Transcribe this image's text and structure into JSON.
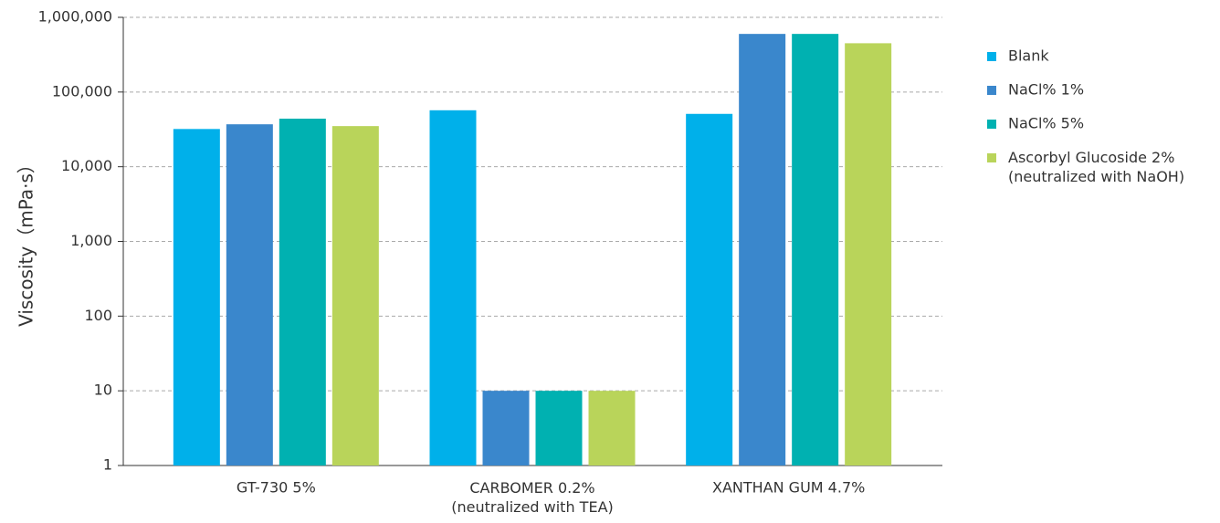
{
  "chart_data": {
    "type": "bar",
    "y_label": "Viscosity（mPa·s）",
    "categories": [
      "GT-730 5%",
      "CARBOMER 0.2%\n(neutralized with TEA)",
      "XANTHAN GUM 4.7%"
    ],
    "series": [
      {
        "name": "Blank",
        "color": "#00b0ea",
        "values": [
          32000,
          57000,
          51000
        ]
      },
      {
        "name": "NaCl% 1%",
        "color": "#3a87cc",
        "values": [
          37000,
          10,
          600000
        ]
      },
      {
        "name": "NaCl% 5%",
        "color": "#00b1b1",
        "values": [
          44000,
          10,
          600000
        ]
      },
      {
        "name": "Ascorbyl Glucoside 2%\n(neutralized with NaOH)",
        "color": "#b9d45a",
        "values": [
          35000,
          10,
          450000
        ]
      }
    ],
    "log_scale": true,
    "ylim": [
      1,
      1000000
    ],
    "yticks": [
      1,
      10,
      100,
      {
        "value": 1000,
        "label": "1,000"
      },
      {
        "value": 10000,
        "label": "10,000"
      },
      {
        "value": 100000,
        "label": "100,000"
      },
      {
        "value": 1000000,
        "label": "1,000,000"
      }
    ],
    "grid": true,
    "legend": "right"
  }
}
